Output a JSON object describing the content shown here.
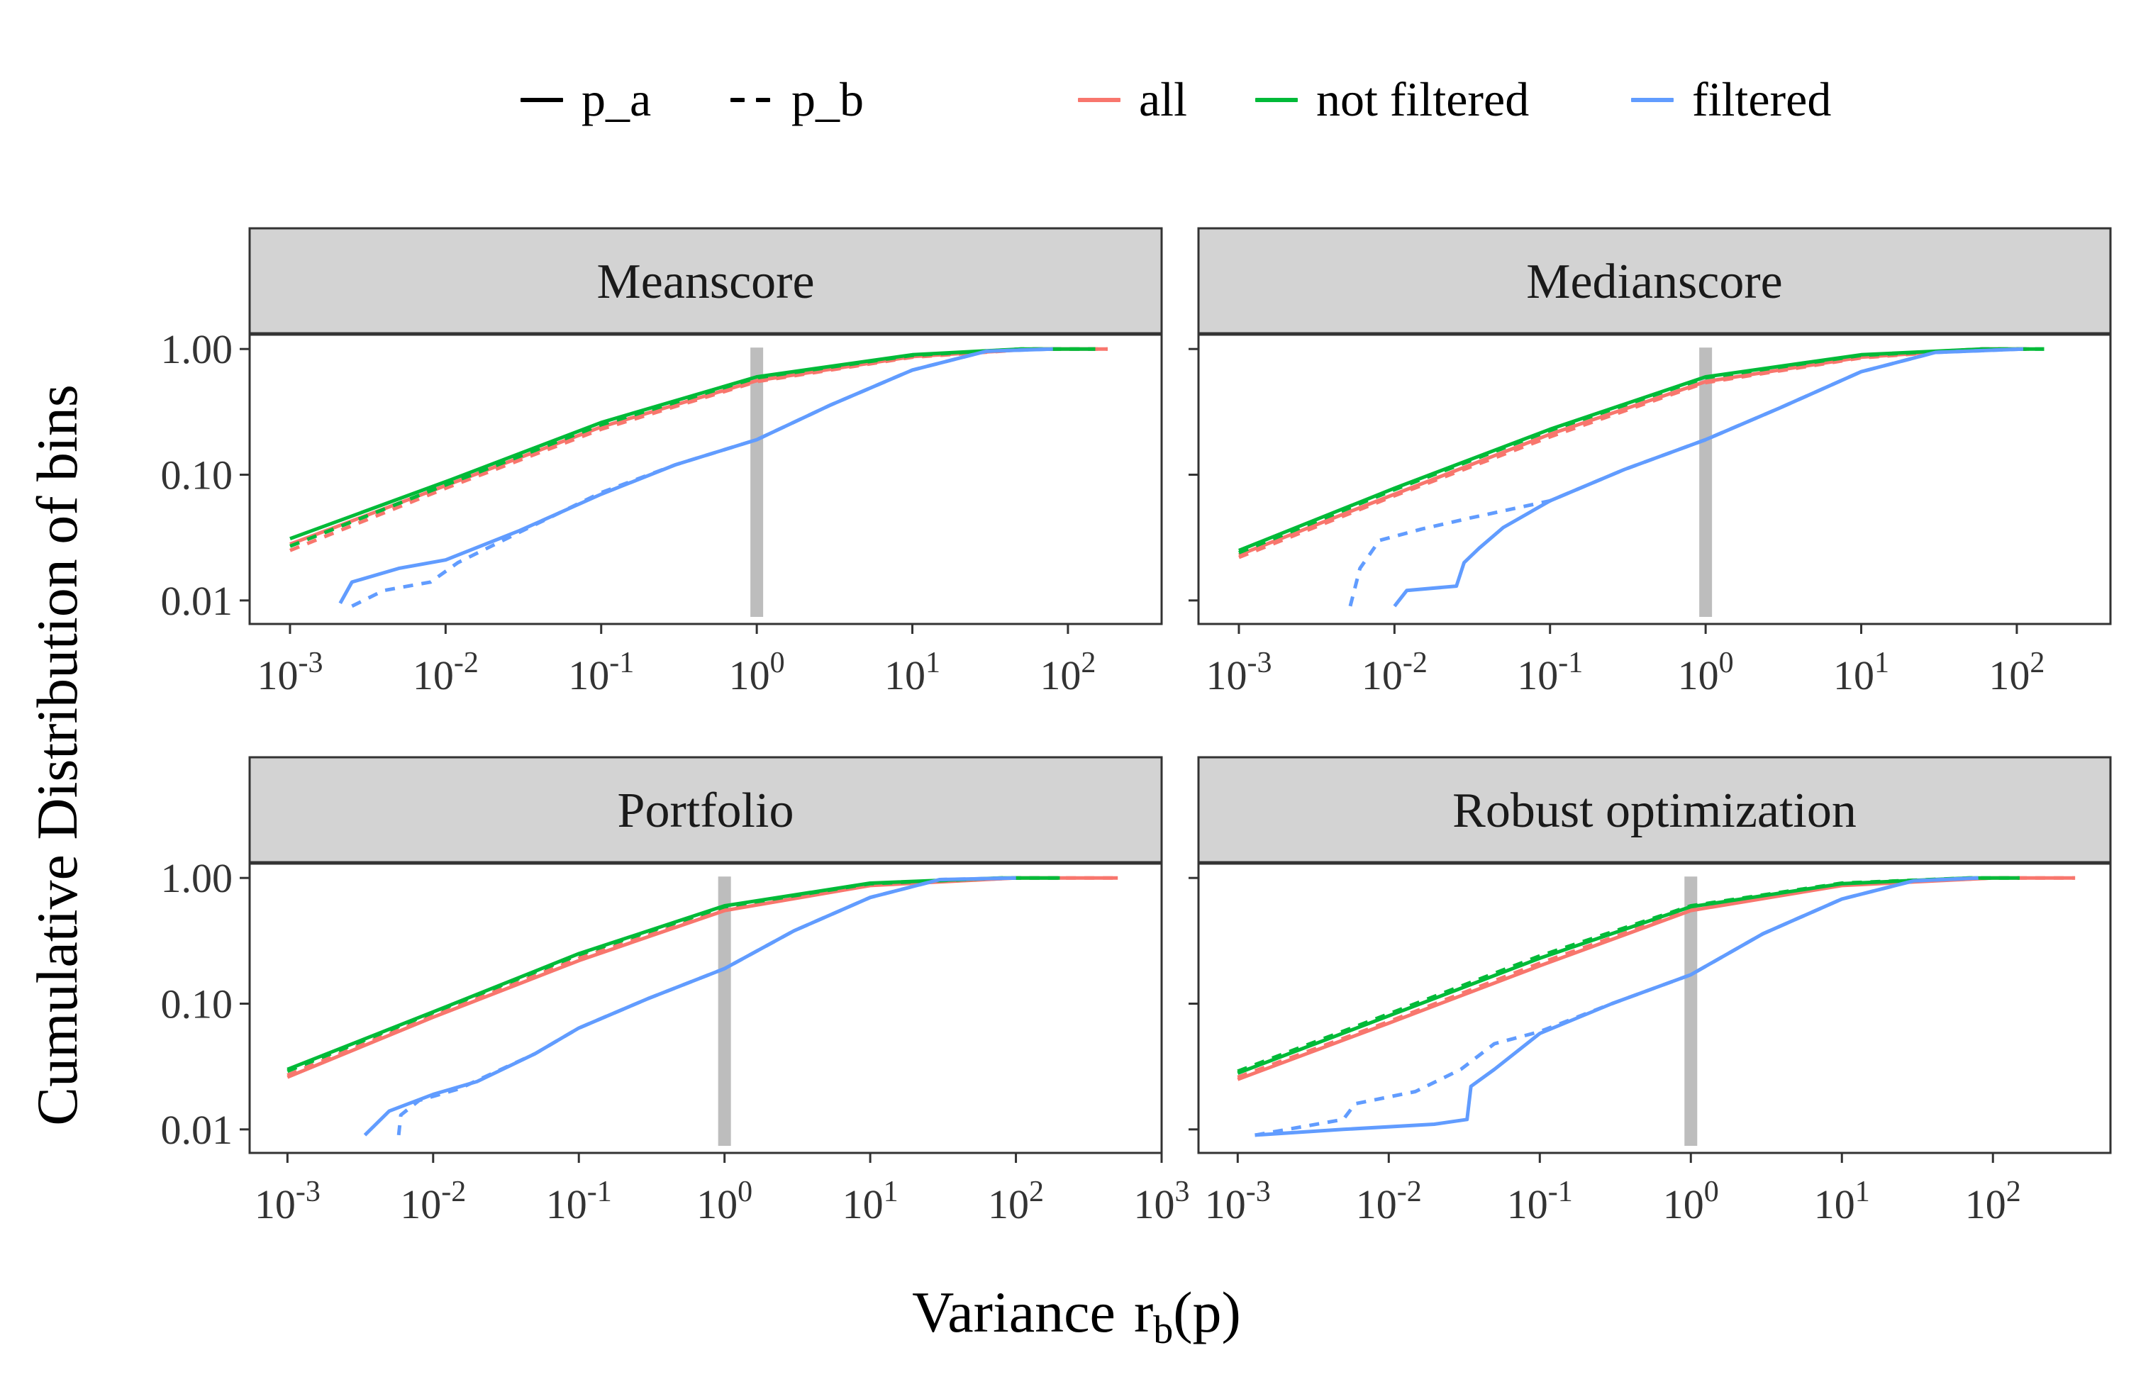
{
  "legend": {
    "linetype": [
      {
        "label": "p_a",
        "style": "solid"
      },
      {
        "label": "p_b",
        "style": "dashed"
      }
    ],
    "color": [
      {
        "label": "all",
        "color": "#F8766D"
      },
      {
        "label": "not filtered",
        "color": "#00BA38"
      },
      {
        "label": "filtered",
        "color": "#619CFF"
      }
    ]
  },
  "axis": {
    "ylabel": "Cumulative Distribution of bins",
    "xlabel_prefix": "Variance",
    "xlabel_var": "r",
    "xlabel_sub": "b",
    "xlabel_suffix": "(p)",
    "y_ticks": [
      "1.00",
      "0.10",
      "0.01"
    ],
    "y_tick_values": [
      1.0,
      0.1,
      0.01
    ]
  },
  "colors": {
    "all": "#F8766D",
    "not_filtered": "#00BA38",
    "filtered": "#619CFF",
    "strip": "#D3D3D3",
    "ref_band": "#BDBDBD"
  },
  "chart_data": [
    {
      "type": "line",
      "title": "Meanscore",
      "x_scale": "log10",
      "y_scale": "log10",
      "xlim": [
        0.00055,
        400
      ],
      "ylim": [
        0.0065,
        1.3
      ],
      "x_tick_exponents": [
        -3,
        -2,
        -1,
        0,
        1,
        2
      ],
      "reference_x": 1,
      "series": [
        {
          "name": "all",
          "linetype": "p_a",
          "x": [
            0.001,
            0.01,
            0.1,
            1,
            10,
            60,
            180
          ],
          "y": [
            0.028,
            0.082,
            0.24,
            0.56,
            0.87,
            1.0,
            1.0
          ]
        },
        {
          "name": "all",
          "linetype": "p_b",
          "x": [
            0.001,
            0.01,
            0.1,
            1,
            10,
            60,
            180
          ],
          "y": [
            0.025,
            0.078,
            0.23,
            0.55,
            0.86,
            1.0,
            1.0
          ]
        },
        {
          "name": "not filtered",
          "linetype": "p_a",
          "x": [
            0.001,
            0.01,
            0.1,
            1,
            10,
            50,
            150
          ],
          "y": [
            0.031,
            0.088,
            0.26,
            0.6,
            0.9,
            1.0,
            1.0
          ]
        },
        {
          "name": "not filtered",
          "linetype": "p_b",
          "x": [
            0.001,
            0.01,
            0.1,
            1,
            10,
            50,
            150
          ],
          "y": [
            0.027,
            0.083,
            0.25,
            0.59,
            0.89,
            1.0,
            1.0
          ]
        },
        {
          "name": "filtered",
          "linetype": "p_a",
          "x": [
            0.0021,
            0.0025,
            0.005,
            0.01,
            0.03,
            0.1,
            0.3,
            1,
            3,
            10,
            30,
            80
          ],
          "y": [
            0.0095,
            0.014,
            0.018,
            0.021,
            0.036,
            0.07,
            0.12,
            0.19,
            0.36,
            0.68,
            0.96,
            1.0
          ]
        },
        {
          "name": "filtered",
          "linetype": "p_b",
          "x": [
            0.0025,
            0.004,
            0.008,
            0.012,
            0.03,
            0.1,
            0.3,
            1,
            3,
            10,
            30,
            80
          ],
          "y": [
            0.009,
            0.012,
            0.014,
            0.02,
            0.035,
            0.072,
            0.12,
            0.19,
            0.36,
            0.68,
            0.96,
            1.0
          ]
        }
      ]
    },
    {
      "type": "line",
      "title": "Medianscore",
      "x_scale": "log10",
      "y_scale": "log10",
      "xlim": [
        0.00055,
        400
      ],
      "ylim": [
        0.0065,
        1.3
      ],
      "x_tick_exponents": [
        -3,
        -2,
        -1,
        0,
        1,
        2
      ],
      "reference_x": 1,
      "series": [
        {
          "name": "all",
          "linetype": "p_a",
          "x": [
            0.001,
            0.01,
            0.1,
            1,
            10,
            60,
            120
          ],
          "y": [
            0.023,
            0.07,
            0.21,
            0.55,
            0.86,
            1.0,
            1.0
          ]
        },
        {
          "name": "all",
          "linetype": "p_b",
          "x": [
            0.001,
            0.01,
            0.1,
            1,
            10,
            60,
            120
          ],
          "y": [
            0.022,
            0.068,
            0.2,
            0.54,
            0.85,
            1.0,
            1.0
          ]
        },
        {
          "name": "not filtered",
          "linetype": "p_a",
          "x": [
            0.001,
            0.01,
            0.1,
            1,
            10,
            60,
            150
          ],
          "y": [
            0.025,
            0.078,
            0.23,
            0.6,
            0.9,
            1.0,
            1.0
          ]
        },
        {
          "name": "not filtered",
          "linetype": "p_b",
          "x": [
            0.001,
            0.01,
            0.1,
            1,
            10,
            60,
            150
          ],
          "y": [
            0.024,
            0.076,
            0.225,
            0.59,
            0.89,
            1.0,
            1.0
          ]
        },
        {
          "name": "filtered",
          "linetype": "p_a",
          "x": [
            0.01,
            0.012,
            0.025,
            0.028,
            0.035,
            0.05,
            0.1,
            0.3,
            1,
            3,
            10,
            30,
            110
          ],
          "y": [
            0.009,
            0.012,
            0.013,
            0.02,
            0.026,
            0.038,
            0.062,
            0.11,
            0.19,
            0.34,
            0.66,
            0.94,
            1.0
          ]
        },
        {
          "name": "filtered",
          "linetype": "p_b",
          "x": [
            0.0052,
            0.006,
            0.008,
            0.015,
            0.03,
            0.1,
            0.3,
            1,
            3,
            10,
            30,
            110
          ],
          "y": [
            0.009,
            0.018,
            0.03,
            0.037,
            0.045,
            0.062,
            0.11,
            0.19,
            0.34,
            0.66,
            0.94,
            1.0
          ]
        }
      ]
    },
    {
      "type": "line",
      "title": "Portfolio",
      "x_scale": "log10",
      "y_scale": "log10",
      "xlim": [
        0.00055,
        1000
      ],
      "ylim": [
        0.0065,
        1.3
      ],
      "x_tick_exponents": [
        -3,
        -2,
        -1,
        0,
        1,
        2,
        3
      ],
      "reference_x": 1,
      "series": [
        {
          "name": "all",
          "linetype": "p_a",
          "x": [
            0.001,
            0.01,
            0.1,
            1,
            10,
            100,
            500
          ],
          "y": [
            0.026,
            0.078,
            0.22,
            0.55,
            0.87,
            1.0,
            1.0
          ]
        },
        {
          "name": "all",
          "linetype": "p_b",
          "x": [
            0.001,
            0.01,
            0.1,
            1,
            10,
            100,
            500
          ],
          "y": [
            0.027,
            0.08,
            0.23,
            0.56,
            0.88,
            1.0,
            1.0
          ]
        },
        {
          "name": "not filtered",
          "linetype": "p_a",
          "x": [
            0.001,
            0.01,
            0.1,
            1,
            10,
            80,
            200
          ],
          "y": [
            0.03,
            0.086,
            0.25,
            0.6,
            0.91,
            1.0,
            1.0
          ]
        },
        {
          "name": "not filtered",
          "linetype": "p_b",
          "x": [
            0.001,
            0.01,
            0.1,
            1,
            10,
            80,
            200
          ],
          "y": [
            0.029,
            0.085,
            0.245,
            0.59,
            0.9,
            1.0,
            1.0
          ]
        },
        {
          "name": "filtered",
          "linetype": "p_a",
          "x": [
            0.0034,
            0.005,
            0.01,
            0.02,
            0.05,
            0.1,
            0.3,
            1,
            3,
            10,
            30,
            100
          ],
          "y": [
            0.009,
            0.014,
            0.019,
            0.024,
            0.04,
            0.064,
            0.11,
            0.19,
            0.38,
            0.7,
            0.97,
            1.0
          ]
        },
        {
          "name": "filtered",
          "linetype": "p_b",
          "x": [
            0.0058,
            0.006,
            0.008,
            0.015,
            0.05,
            0.1,
            0.3,
            1,
            3,
            10,
            30,
            100
          ],
          "y": [
            0.009,
            0.013,
            0.017,
            0.021,
            0.04,
            0.064,
            0.11,
            0.19,
            0.38,
            0.7,
            0.97,
            1.0
          ]
        }
      ]
    },
    {
      "type": "line",
      "title": "Robust optimization",
      "x_scale": "log10",
      "y_scale": "log10",
      "xlim": [
        0.00055,
        600
      ],
      "ylim": [
        0.0065,
        1.3
      ],
      "x_tick_exponents": [
        -3,
        -2,
        -1,
        0,
        1,
        2
      ],
      "reference_x": 1,
      "series": [
        {
          "name": "all",
          "linetype": "p_a",
          "x": [
            0.001,
            0.01,
            0.1,
            1,
            10,
            100,
            350
          ],
          "y": [
            0.025,
            0.07,
            0.2,
            0.55,
            0.87,
            1.0,
            1.0
          ]
        },
        {
          "name": "all",
          "linetype": "p_b",
          "x": [
            0.001,
            0.01,
            0.1,
            1,
            10,
            100,
            350
          ],
          "y": [
            0.026,
            0.072,
            0.21,
            0.56,
            0.88,
            1.0,
            1.0
          ]
        },
        {
          "name": "not filtered",
          "linetype": "p_a",
          "x": [
            0.001,
            0.01,
            0.1,
            1,
            10,
            70,
            150
          ],
          "y": [
            0.028,
            0.08,
            0.23,
            0.59,
            0.9,
            1.0,
            1.0
          ]
        },
        {
          "name": "not filtered",
          "linetype": "p_b",
          "x": [
            0.001,
            0.01,
            0.1,
            1,
            10,
            70,
            150
          ],
          "y": [
            0.029,
            0.083,
            0.24,
            0.6,
            0.91,
            1.0,
            1.0
          ]
        },
        {
          "name": "filtered",
          "linetype": "p_a",
          "x": [
            0.0013,
            0.005,
            0.02,
            0.033,
            0.035,
            0.05,
            0.1,
            0.3,
            1,
            3,
            10,
            30,
            80
          ],
          "y": [
            0.009,
            0.01,
            0.011,
            0.012,
            0.022,
            0.03,
            0.058,
            0.1,
            0.17,
            0.36,
            0.68,
            0.95,
            1.0
          ]
        },
        {
          "name": "filtered",
          "linetype": "p_b",
          "x": [
            0.0013,
            0.005,
            0.006,
            0.015,
            0.03,
            0.05,
            0.1,
            0.3,
            1,
            3,
            10,
            30,
            80
          ],
          "y": [
            0.009,
            0.012,
            0.016,
            0.02,
            0.03,
            0.048,
            0.06,
            0.1,
            0.17,
            0.36,
            0.68,
            0.95,
            1.0
          ]
        }
      ]
    }
  ]
}
